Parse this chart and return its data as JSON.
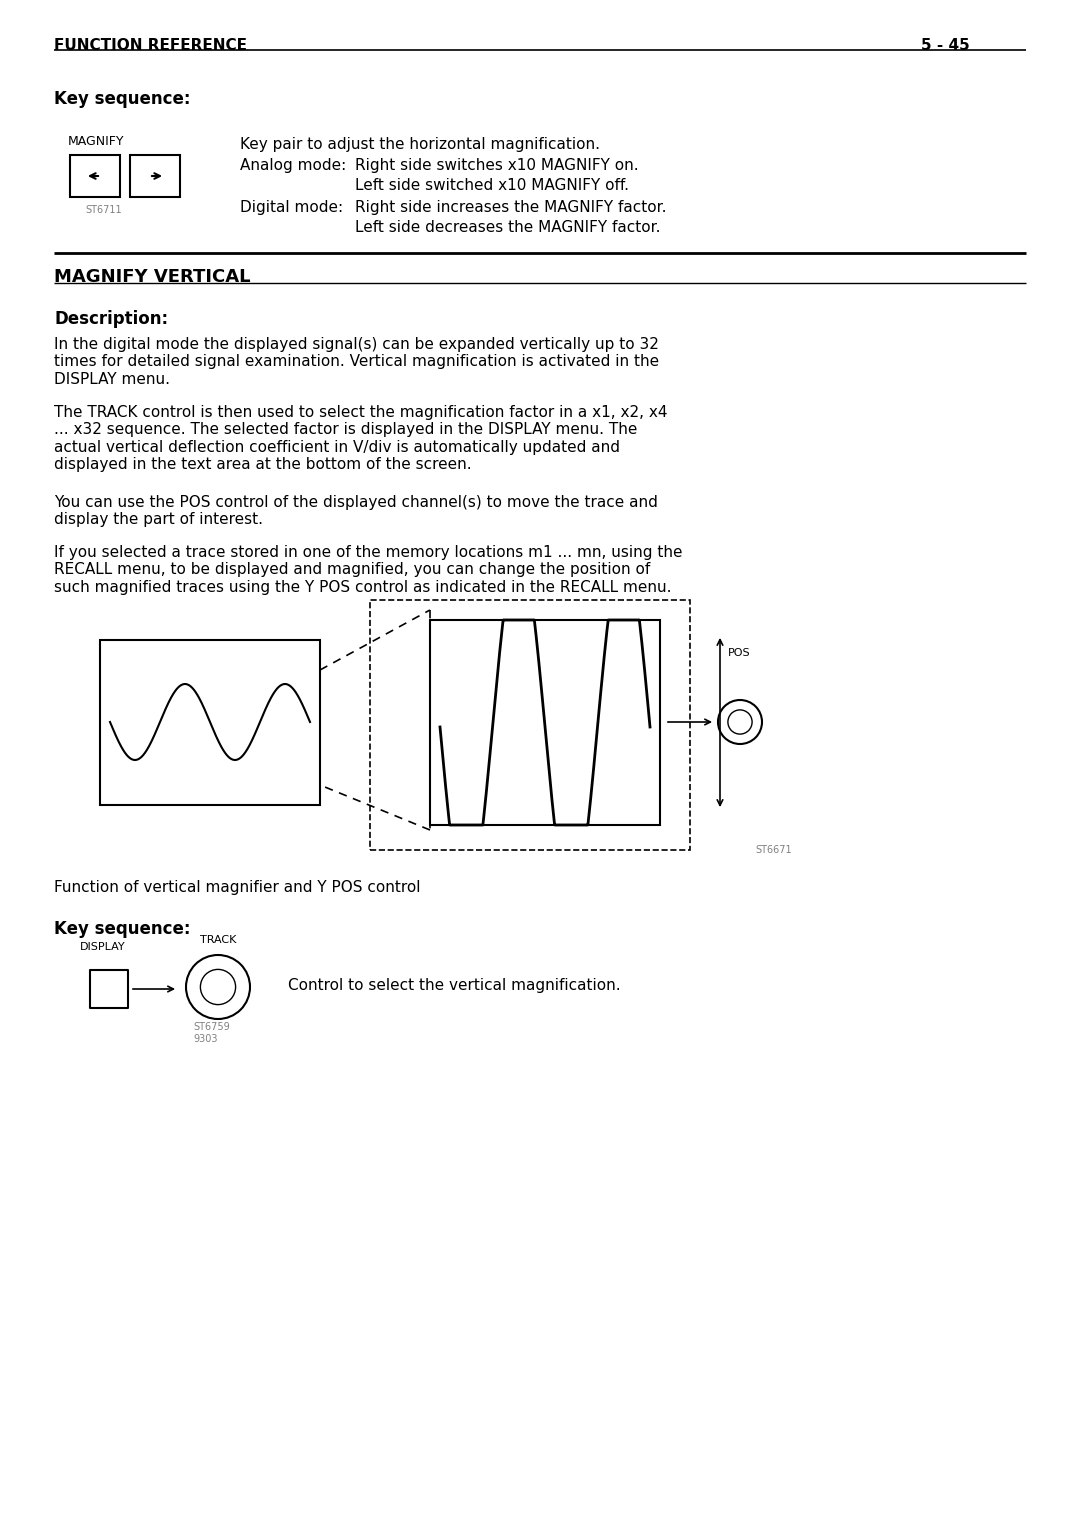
{
  "title_left": "FUNCTION REFERENCE",
  "title_right": "5 - 45",
  "section1_header": "Key sequence:",
  "magnify_label": "MAGNIFY",
  "st6711_label": "ST6711",
  "key_pair_line1": "Key pair to adjust the horizontal magnification.",
  "key_pair_line2_label": "Analog mode:",
  "key_pair_line2_text": "Right side switches x10 MAGNIFY on.",
  "key_pair_line3_text": "Left side switched x10 MAGNIFY off.",
  "key_pair_line4_label": "Digital mode:",
  "key_pair_line4_text": "Right side increases the MAGNIFY factor.",
  "key_pair_line5_text": "Left side decreases the MAGNIFY factor.",
  "section2_header": "MAGNIFY VERTICAL",
  "section2_subheader": "Description:",
  "para1": "In the digital mode the displayed signal(s) can be expanded vertically up to 32\ntimes for detailed signal examination. Vertical magnification is activated in the\nDISPLAY menu.",
  "para2": "The TRACK control is then used to select the magnification factor in a x1, x2, x4\n... x32 sequence. The selected factor is displayed in the DISPLAY menu. The\nactual vertical deflection coefficient in V/div is automatically updated and\ndisplayed in the text area at the bottom of the screen.",
  "para3": "You can use the POS control of the displayed channel(s) to move the trace and\ndisplay the part of interest.",
  "para4": "If you selected a trace stored in one of the memory locations m1 ... mn, using the\nRECALL menu, to be displayed and magnified, you can change the position of\nsuch magnified traces using the Y POS control as indicated in the RECALL menu.",
  "fig_caption": "Function of vertical magnifier and Y POS control",
  "st6671_label": "ST6671",
  "section3_header": "Key sequence:",
  "display_label": "DISPLAY",
  "track_label": "TRACK",
  "st6759_label": "ST6759\n9303",
  "control_text": "Control to select the vertical magnification.",
  "pos_label": "POS",
  "bg_color": "#ffffff",
  "text_color": "#000000"
}
